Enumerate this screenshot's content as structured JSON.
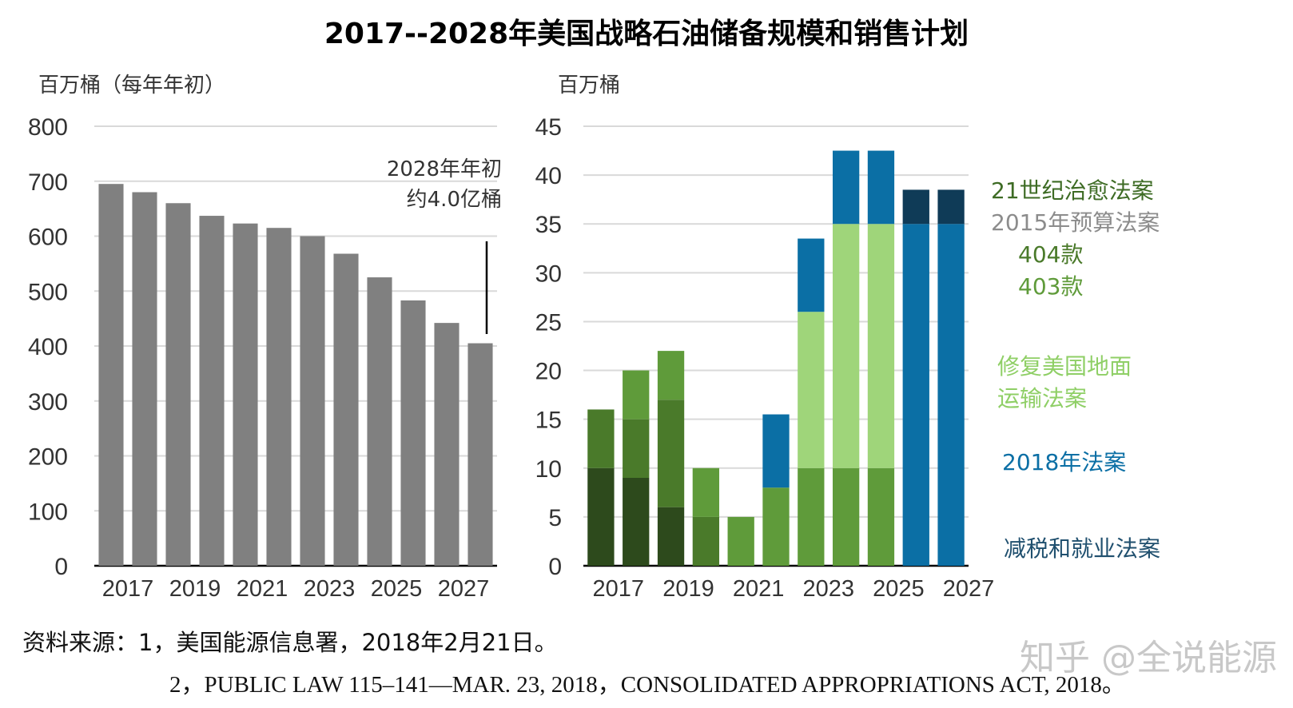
{
  "title": "2017--2028年美国战略石油储备规模和销售计划",
  "colors": {
    "grey_bar": "#808080",
    "grid": "#d9d9d9",
    "dark_green": "#2d4a1c",
    "mid_green": "#4a7a2a",
    "green": "#5f9b3a",
    "light_green": "#9fd57a",
    "blue": "#0b6fa5",
    "navy": "#0f3b57",
    "legend_grey": "#8c8c8c"
  },
  "chart_data": [
    {
      "type": "bar",
      "ylabel": "百万桶（每年年初）",
      "ylim": [
        0,
        800
      ],
      "yticks": [
        0,
        100,
        200,
        300,
        400,
        500,
        600,
        700,
        800
      ],
      "categories": [
        "2017",
        "2018",
        "2019",
        "2020",
        "2021",
        "2022",
        "2023",
        "2024",
        "2025",
        "2026",
        "2027",
        "2028"
      ],
      "xtick_labels": [
        "2017",
        "2019",
        "2021",
        "2023",
        "2025",
        "2027"
      ],
      "values": [
        695,
        680,
        660,
        637,
        623,
        615,
        600,
        568,
        525,
        483,
        442,
        405
      ],
      "annotation": {
        "line1": "2028年年初",
        "line2": "约4.0亿桶"
      }
    },
    {
      "type": "stacked-bar",
      "ylabel": "百万桶",
      "ylim": [
        0,
        45
      ],
      "yticks": [
        0,
        5,
        10,
        15,
        20,
        25,
        30,
        35,
        40,
        45
      ],
      "categories": [
        "2017",
        "2018",
        "2019",
        "2020",
        "2021",
        "2022",
        "2023",
        "2024",
        "2025",
        "2026",
        "2027",
        "2028"
      ],
      "xtick_labels": [
        "2017",
        "2019",
        "2021",
        "2023",
        "2025",
        "2027"
      ],
      "series": [
        {
          "name": "减税和就业法案",
          "color": "#0f3b57",
          "values": [
            0,
            0,
            0,
            0,
            0,
            0,
            0,
            0,
            0,
            0,
            0,
            0
          ]
        },
        {
          "name": "2018年法案",
          "color": "#0b6fa5",
          "values": [
            0,
            0,
            0,
            0,
            0,
            7.5,
            7.5,
            7.5,
            7.5,
            35,
            35,
            0
          ]
        },
        {
          "name": "修复美国地面运输法案",
          "color": "#9fd57a",
          "values": [
            0,
            0,
            0,
            0,
            0,
            0,
            16,
            25,
            25,
            0,
            0,
            0
          ]
        },
        {
          "name": "403款",
          "color": "#5f9b3a",
          "values": [
            0,
            5,
            5,
            5,
            5,
            8,
            10,
            10,
            10,
            0,
            0,
            0
          ]
        },
        {
          "name": "404款",
          "color": "#4a7a2a",
          "values": [
            6,
            6,
            11,
            5,
            0,
            0,
            0,
            0,
            0,
            0,
            0,
            0
          ]
        },
        {
          "name": "2015年预算法案",
          "color": "#8c8c8c",
          "values": [
            0,
            0,
            0,
            0,
            0,
            0,
            0,
            0,
            0,
            0,
            0,
            0
          ]
        },
        {
          "name": "21世纪治愈法案",
          "color": "#2d4a1c",
          "values": [
            10,
            9,
            6,
            0,
            0,
            0,
            0,
            0,
            0,
            0,
            0,
            0
          ]
        },
        {
          "name": "减税和就业法案(顶部)",
          "color": "#0f3b57",
          "values": [
            0,
            0,
            0,
            0,
            0,
            0,
            0,
            0,
            0,
            3.5,
            3.5,
            0
          ]
        }
      ]
    }
  ],
  "legend": [
    {
      "text": "21世纪治愈法案",
      "color": "#3d6b24"
    },
    {
      "text": "2015年预算法案",
      "color": "#8c8c8c"
    },
    {
      "text": "404款",
      "color": "#4a7a2a"
    },
    {
      "text": "403款",
      "color": "#5f9b3a"
    },
    {
      "text": "修复美国地面",
      "color": "#8fcf66"
    },
    {
      "text": "运输法案",
      "color": "#8fcf66"
    },
    {
      "text": "2018年法案",
      "color": "#0b6fa5"
    },
    {
      "text": "减税和就业法案",
      "color": "#1f4f6e"
    }
  ],
  "source": {
    "line1": "资料来源：1，美国能源信息署，2018年2月21日。",
    "line2": "2，PUBLIC LAW 115–141—MAR. 23, 2018，CONSOLIDATED APPROPRIATIONS ACT, 2018。"
  },
  "watermark": "知乎 @全说能源"
}
